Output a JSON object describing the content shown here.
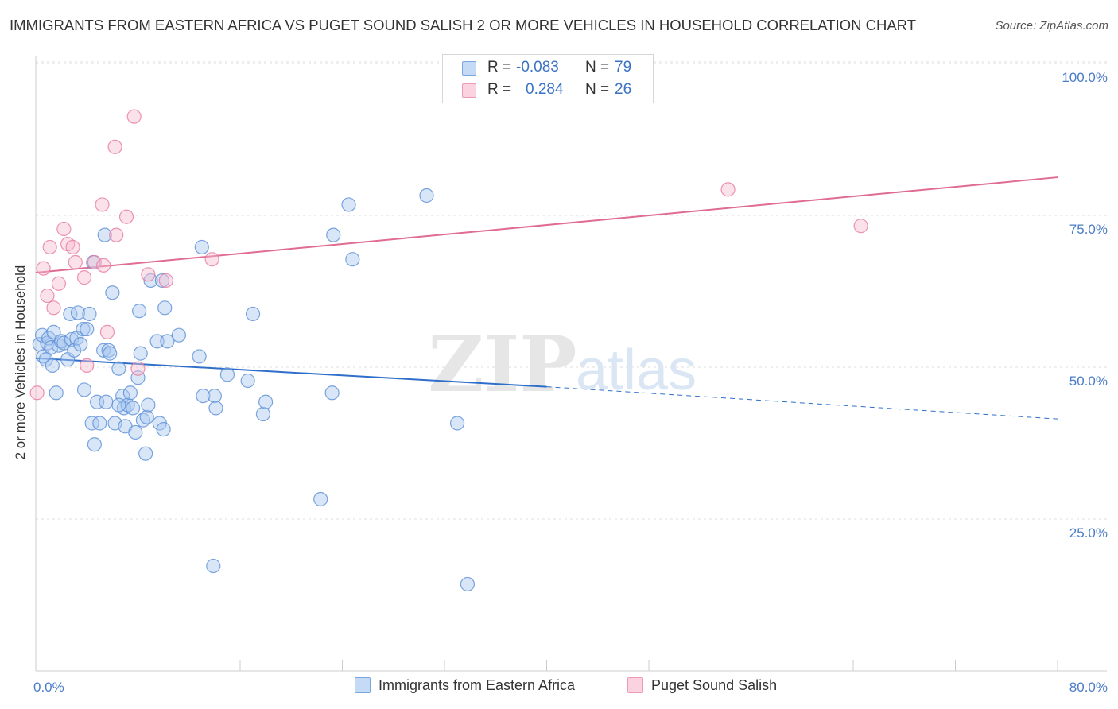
{
  "chart_data": {
    "type": "scatter",
    "title": "IMMIGRANTS FROM EASTERN AFRICA VS PUGET SOUND SALISH 2 OR MORE VEHICLES IN HOUSEHOLD CORRELATION CHART",
    "source": "Source: ZipAtlas.com",
    "ylabel": "2 or more Vehicles in Household",
    "xlim": [
      0,
      80
    ],
    "ylim": [
      0,
      105
    ],
    "x_tick_labels": [
      "0.0%",
      "80.0%"
    ],
    "y_ticks": [
      {
        "value": 100,
        "label": "100.0%"
      },
      {
        "value": 75,
        "label": "75.0%"
      },
      {
        "value": 50,
        "label": "50.0%"
      },
      {
        "value": 25,
        "label": "25.0%"
      }
    ],
    "legend": {
      "rows": [
        {
          "r_label": "R =",
          "r_value": "-0.083",
          "n_label": "N =",
          "n_value": "79"
        },
        {
          "r_label": "R =",
          "r_value": "0.284",
          "n_label": "N =",
          "n_value": "26"
        }
      ]
    },
    "series": [
      {
        "name": "Immigrants from Eastern Africa",
        "color": "#a9c8ef",
        "stroke": "#5b8fd6",
        "trend": {
          "x0": 0,
          "y0": 53.7,
          "x1": 40,
          "y1": 49.0,
          "dash_to": 80,
          "dash_y": 43.7,
          "color": "#2f6fc9"
        },
        "points": [
          [
            0.3,
            56
          ],
          [
            0.5,
            57.5
          ],
          [
            0.6,
            54
          ],
          [
            0.8,
            53.5
          ],
          [
            0.9,
            56.2
          ],
          [
            1,
            57
          ],
          [
            1.2,
            55.5
          ],
          [
            1.3,
            52.5
          ],
          [
            1.4,
            58
          ],
          [
            1.6,
            48
          ],
          [
            1.8,
            55.8
          ],
          [
            2,
            56.5
          ],
          [
            2.2,
            56.2
          ],
          [
            2.5,
            53.5
          ],
          [
            2.7,
            61
          ],
          [
            2.8,
            56.8
          ],
          [
            3,
            55
          ],
          [
            3.2,
            57
          ],
          [
            3.3,
            61.2
          ],
          [
            3.5,
            56
          ],
          [
            3.7,
            58.5
          ],
          [
            3.8,
            48.5
          ],
          [
            4,
            58.5
          ],
          [
            4.2,
            61
          ],
          [
            4.4,
            43
          ],
          [
            4.5,
            69.5
          ],
          [
            4.6,
            39.5
          ],
          [
            4.8,
            46.5
          ],
          [
            5,
            43
          ],
          [
            5.3,
            55
          ],
          [
            5.4,
            74
          ],
          [
            5.5,
            46.5
          ],
          [
            5.7,
            55
          ],
          [
            5.8,
            54.5
          ],
          [
            6,
            64.5
          ],
          [
            6.2,
            43
          ],
          [
            6.5,
            52
          ],
          [
            6.8,
            47.5
          ],
          [
            6.9,
            45.5
          ],
          [
            7,
            42.5
          ],
          [
            7.2,
            46
          ],
          [
            7.4,
            48
          ],
          [
            7.6,
            45.5
          ],
          [
            7.8,
            41.5
          ],
          [
            8,
            50.5
          ],
          [
            8.1,
            61.5
          ],
          [
            8.2,
            54.5
          ],
          [
            8.4,
            43.5
          ],
          [
            8.6,
            38
          ],
          [
            8.7,
            44
          ],
          [
            8.8,
            46
          ],
          [
            9,
            66.5
          ],
          [
            9.5,
            56.5
          ],
          [
            9.7,
            43
          ],
          [
            9.9,
            66.5
          ],
          [
            10,
            42
          ],
          [
            10.1,
            62
          ],
          [
            10.3,
            56.5
          ],
          [
            11.2,
            57.5
          ],
          [
            12.8,
            54
          ],
          [
            13,
            72
          ],
          [
            13.1,
            47.5
          ],
          [
            13.9,
            19.5
          ],
          [
            14,
            47.5
          ],
          [
            14.1,
            45.5
          ],
          [
            15,
            51
          ],
          [
            16.6,
            50
          ],
          [
            17,
            61
          ],
          [
            17.8,
            44.5
          ],
          [
            18,
            46.5
          ],
          [
            22.3,
            30.5
          ],
          [
            23.2,
            48
          ],
          [
            23.3,
            74
          ],
          [
            24.5,
            79
          ],
          [
            24.8,
            70
          ],
          [
            30.6,
            80.5
          ],
          [
            33,
            43
          ],
          [
            33.8,
            16.5
          ],
          [
            6.5,
            46
          ]
        ]
      },
      {
        "name": "Puget Sound Salish",
        "color": "#f6bdd0",
        "stroke": "#e67ba0",
        "trend": {
          "x0": 0,
          "y0": 67.8,
          "x1": 80,
          "y1": 83.5,
          "color": "#e06b93"
        },
        "points": [
          [
            0.1,
            48
          ],
          [
            0.6,
            68.5
          ],
          [
            0.9,
            64
          ],
          [
            1.1,
            72
          ],
          [
            1.4,
            62
          ],
          [
            1.8,
            66
          ],
          [
            2.2,
            75
          ],
          [
            2.5,
            72.5
          ],
          [
            2.9,
            72
          ],
          [
            3.1,
            69.5
          ],
          [
            3.8,
            67
          ],
          [
            4,
            52.5
          ],
          [
            4.6,
            69.5
          ],
          [
            5.2,
            79
          ],
          [
            5.3,
            69
          ],
          [
            5.6,
            58
          ],
          [
            6.2,
            88.5
          ],
          [
            6.3,
            74
          ],
          [
            7.1,
            77
          ],
          [
            7.7,
            93.5
          ],
          [
            8,
            52
          ],
          [
            8.8,
            67.5
          ],
          [
            10.2,
            66.5
          ],
          [
            13.8,
            70
          ],
          [
            54.2,
            81.5
          ],
          [
            64.6,
            75.5
          ]
        ]
      }
    ],
    "watermark": {
      "zip": "ZIP",
      "atlas": "atlas"
    }
  }
}
